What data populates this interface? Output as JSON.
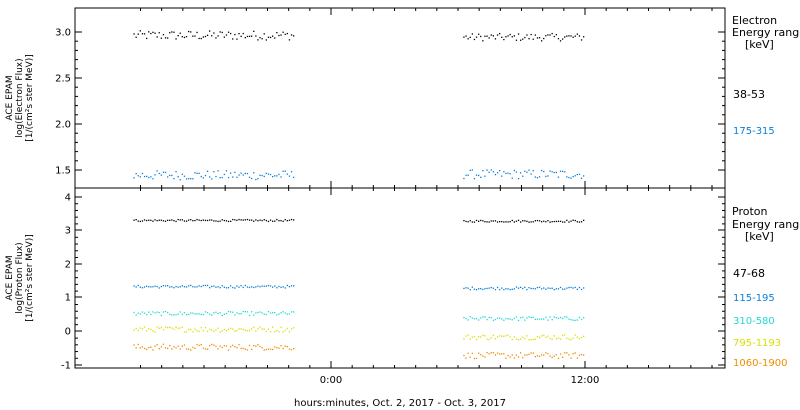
{
  "xlabel": "hours:minutes, Oct.  2, 2017 - Oct.  3, 2017",
  "x_ticks": [
    "0:00",
    "12:00"
  ],
  "chart_data": [
    {
      "type": "scatter",
      "panel": "electron",
      "ylabel_lines": [
        "ACE EPAM",
        "log(Electron Flux)",
        "[1/(cm²s ster MeV)]"
      ],
      "y_ticks": [
        "3.0",
        "2.5",
        "2.0",
        "1.5"
      ],
      "ylim": [
        1.33,
        3.25
      ],
      "legend_title_lines": [
        "Electron",
        "Energy ranges",
        "[keV]"
      ],
      "series": [
        {
          "name": "38-53",
          "color": "#000000",
          "segments": [
            {
              "x_range": [
                "2017-10-02 14:40",
                "2017-10-02 22:15"
              ],
              "mean": 2.97,
              "spread": 0.05
            },
            {
              "x_range": [
                "2017-10-03 06:15",
                "2017-10-03 12:00"
              ],
              "mean": 2.95,
              "spread": 0.04
            }
          ]
        },
        {
          "name": "175-315",
          "color": "#0b7fd6",
          "segments": [
            {
              "x_range": [
                "2017-10-02 14:40",
                "2017-10-02 22:15"
              ],
              "mean": 1.45,
              "spread": 0.05
            },
            {
              "x_range": [
                "2017-10-03 06:15",
                "2017-10-03 12:00"
              ],
              "mean": 1.46,
              "spread": 0.05
            }
          ]
        }
      ]
    },
    {
      "type": "scatter",
      "panel": "proton",
      "ylabel_lines": [
        "ACE EPAM",
        "log(Proton Flux)",
        "[1/(cm²s ster MeV)]"
      ],
      "y_ticks": [
        "4",
        "3",
        "2",
        "1",
        "0",
        "-1"
      ],
      "ylim": [
        -1.1,
        4.3
      ],
      "legend_title_lines": [
        "Proton",
        "Energy ranges",
        "[keV]"
      ],
      "series": [
        {
          "name": "47-68",
          "color": "#000000",
          "segments": [
            {
              "x_range": [
                "2017-10-02 14:40",
                "2017-10-02 22:15"
              ],
              "mean": 3.32,
              "spread": 0.03
            },
            {
              "x_range": [
                "2017-10-03 06:15",
                "2017-10-03 12:00"
              ],
              "mean": 3.3,
              "spread": 0.03
            }
          ]
        },
        {
          "name": "115-195",
          "color": "#0b7fd6",
          "segments": [
            {
              "x_range": [
                "2017-10-02 14:40",
                "2017-10-02 22:15"
              ],
              "mean": 1.35,
              "spread": 0.04
            },
            {
              "x_range": [
                "2017-10-03 06:15",
                "2017-10-03 12:00"
              ],
              "mean": 1.3,
              "spread": 0.04
            }
          ]
        },
        {
          "name": "310-580",
          "color": "#22d8d2",
          "segments": [
            {
              "x_range": [
                "2017-10-02 14:40",
                "2017-10-02 22:15"
              ],
              "mean": 0.55,
              "spread": 0.06
            },
            {
              "x_range": [
                "2017-10-03 06:15",
                "2017-10-03 12:00"
              ],
              "mean": 0.4,
              "spread": 0.06
            }
          ]
        },
        {
          "name": "795-1193",
          "color": "#d8e000",
          "segments": [
            {
              "x_range": [
                "2017-10-02 14:40",
                "2017-10-02 22:15"
              ],
              "mean": 0.08,
              "spread": 0.08
            },
            {
              "x_range": [
                "2017-10-03 06:15",
                "2017-10-03 12:00"
              ],
              "mean": -0.15,
              "spread": 0.08
            }
          ]
        },
        {
          "name": "1060-1900",
          "color": "#f08c00",
          "segments": [
            {
              "x_range": [
                "2017-10-02 14:40",
                "2017-10-02 22:15"
              ],
              "mean": -0.45,
              "spread": 0.09
            },
            {
              "x_range": [
                "2017-10-03 06:15",
                "2017-10-03 12:00"
              ],
              "mean": -0.7,
              "spread": 0.09
            }
          ]
        }
      ]
    }
  ]
}
